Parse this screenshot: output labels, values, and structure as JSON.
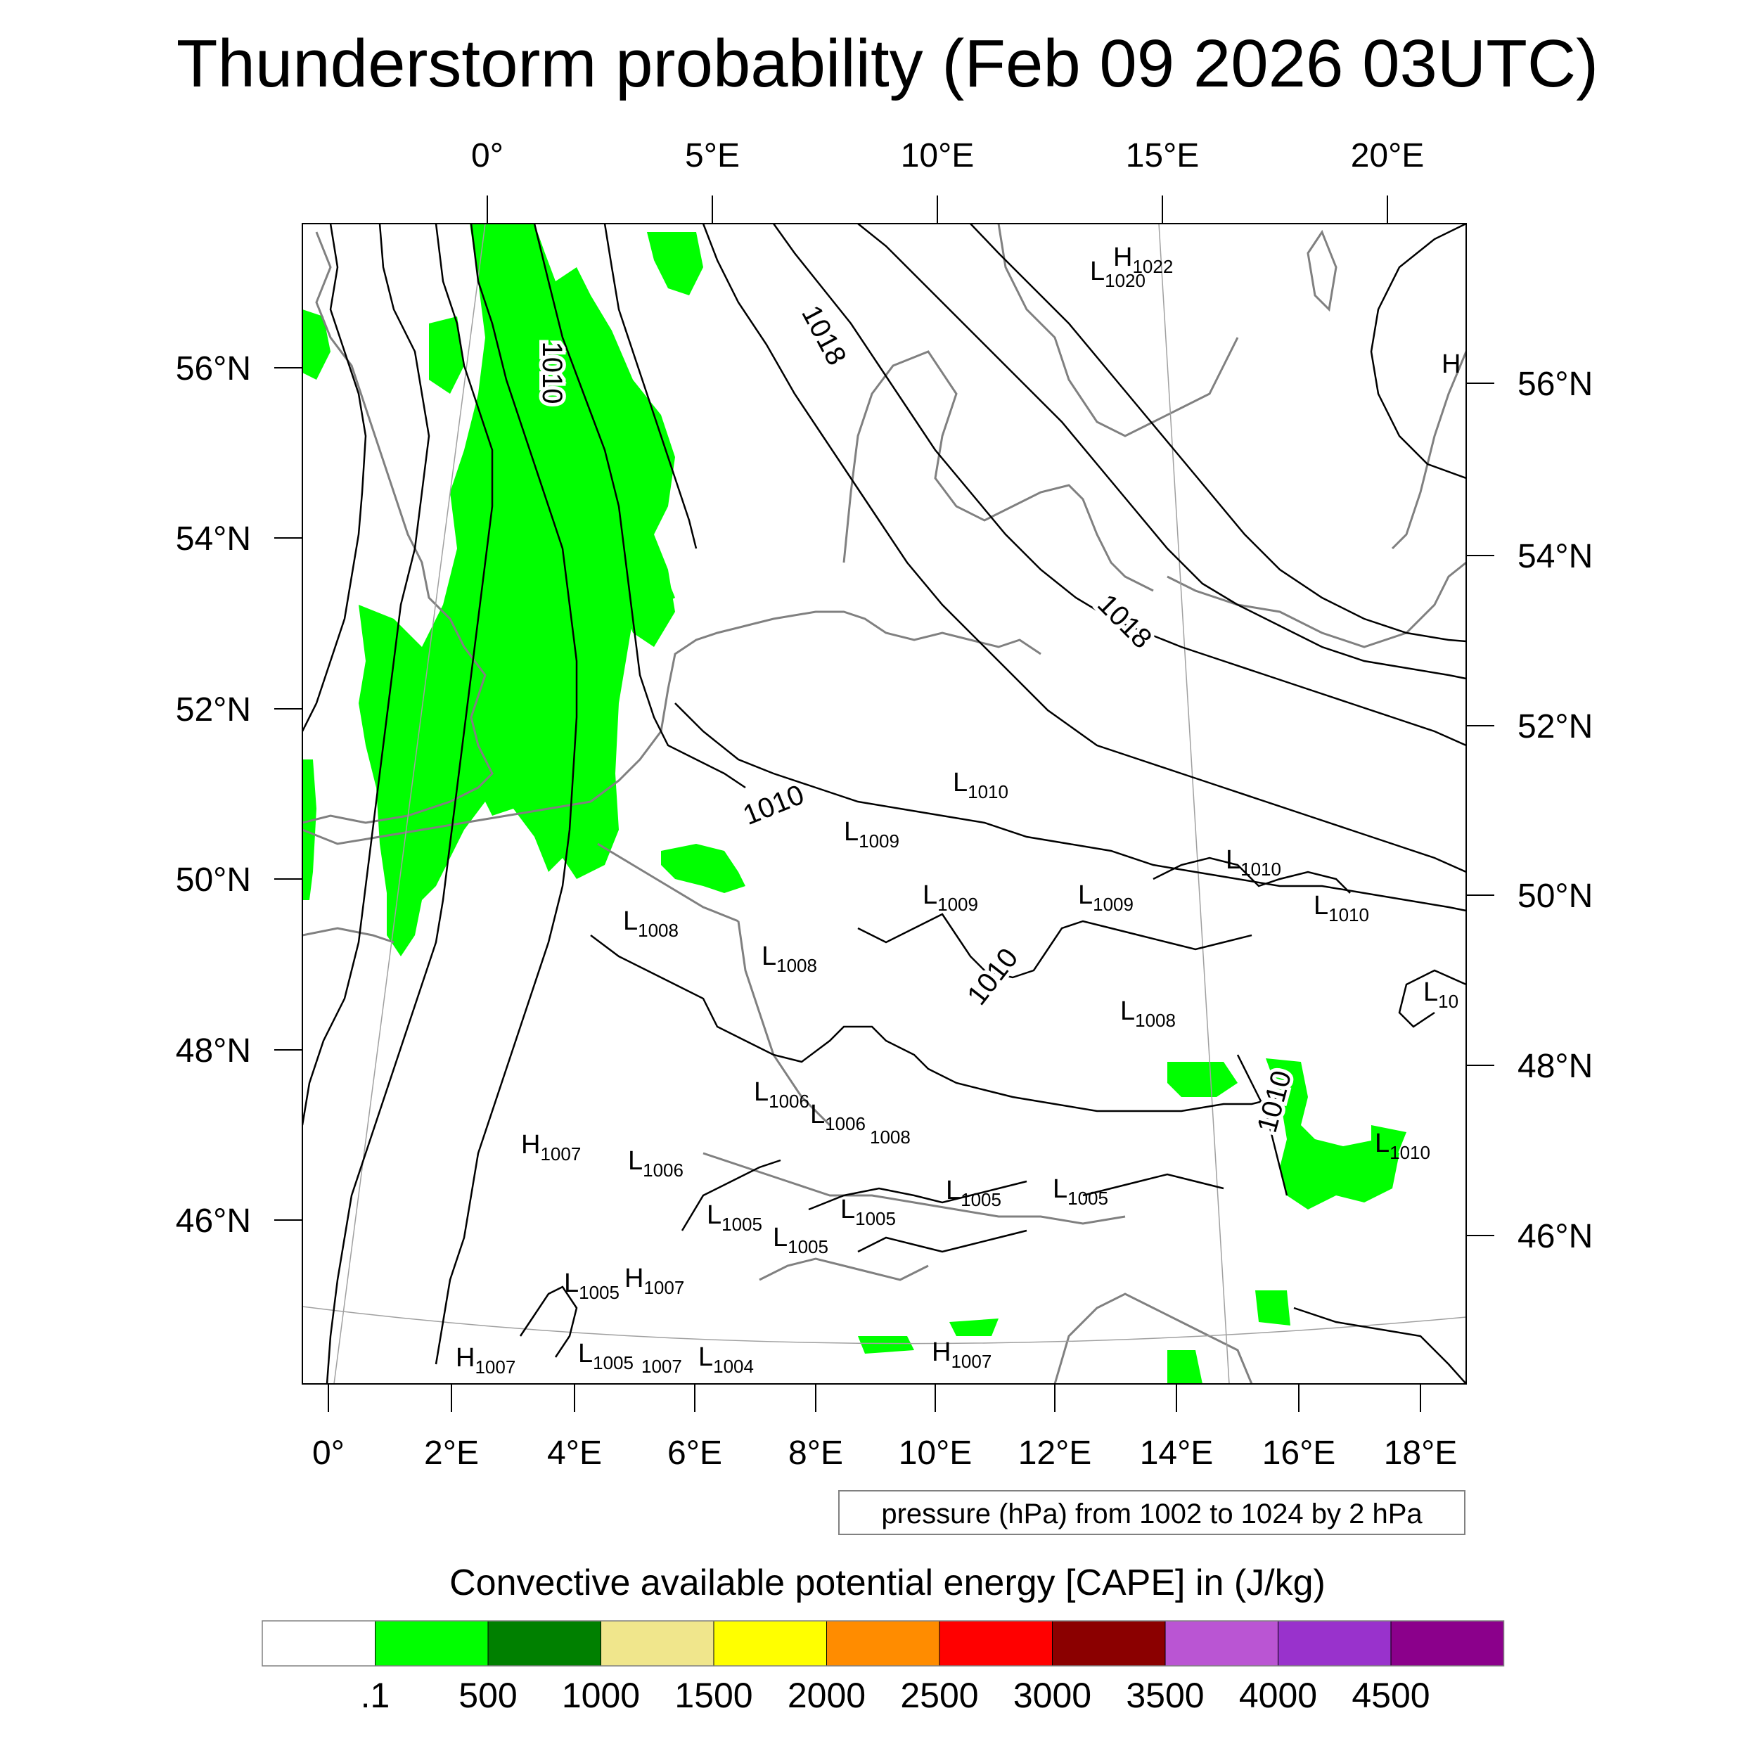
{
  "title": "Thunderstorm probability (Feb 09 2026 03UTC)",
  "top_lon_labels": [
    "0°",
    "5°E",
    "10°E",
    "15°E",
    "20°E"
  ],
  "bottom_lon_labels": [
    "0°",
    "2°E",
    "4°E",
    "6°E",
    "8°E",
    "10°E",
    "12°E",
    "14°E",
    "16°E",
    "18°E"
  ],
  "left_lat_labels": [
    "56°N",
    "54°N",
    "52°N",
    "50°N",
    "48°N",
    "46°N"
  ],
  "right_lat_labels": [
    "56°N",
    "54°N",
    "52°N",
    "50°N",
    "48°N",
    "46°N"
  ],
  "pressure_centers": [
    {
      "letter": "H",
      "value": "1022"
    },
    {
      "letter": "L",
      "value": "1020"
    },
    {
      "letter": "H",
      "value": ""
    },
    {
      "letter": "L",
      "value": "1010"
    },
    {
      "letter": "L",
      "value": "1009"
    },
    {
      "letter": "L",
      "value": "1009"
    },
    {
      "letter": "L",
      "value": "1009"
    },
    {
      "letter": "L",
      "value": "1010"
    },
    {
      "letter": "L",
      "value": "1010"
    },
    {
      "letter": "L",
      "value": "1008"
    },
    {
      "letter": "L",
      "value": "1008"
    },
    {
      "letter": "L",
      "value": "10"
    },
    {
      "letter": "L",
      "value": "1008"
    },
    {
      "letter": "L",
      "value": "1006"
    },
    {
      "letter": "L",
      "value": "1006"
    },
    {
      "letter": "",
      "value": "1008"
    },
    {
      "letter": "H",
      "value": "1007"
    },
    {
      "letter": "L",
      "value": "1006"
    },
    {
      "letter": "L",
      "value": "1010"
    },
    {
      "letter": "L",
      "value": "1005"
    },
    {
      "letter": "L",
      "value": "1005"
    },
    {
      "letter": "L",
      "value": "1005"
    },
    {
      "letter": "L",
      "value": "1005"
    },
    {
      "letter": "L",
      "value": "1005"
    },
    {
      "letter": "L",
      "value": "1005"
    },
    {
      "letter": "H",
      "value": "1007"
    },
    {
      "letter": "H",
      "value": "1007"
    },
    {
      "letter": "L",
      "value": "1005"
    },
    {
      "letter": "",
      "value": "1007"
    },
    {
      "letter": "L",
      "value": "1004"
    },
    {
      "letter": "H",
      "value": "1007"
    }
  ],
  "isobar_labels": [
    "1010",
    "1018",
    "1010",
    "1018",
    "1010",
    "1010"
  ],
  "contour_info": "pressure (hPa) from 1002 to 1024 by 2 hPa",
  "colorbar": {
    "title": "Convective available potential energy [CAPE] in (J/kg)",
    "colors": [
      "#ffffff",
      "#00ff00",
      "#008000",
      "#f0e68c",
      "#ffff00",
      "#ff8c00",
      "#ff0000",
      "#8b0000",
      "#ba55d3",
      "#9932cc",
      "#8b008b"
    ],
    "labels": [
      ".1",
      "500",
      "1000",
      "1500",
      "2000",
      "2500",
      "3000",
      "3500",
      "4000",
      "4500"
    ]
  }
}
